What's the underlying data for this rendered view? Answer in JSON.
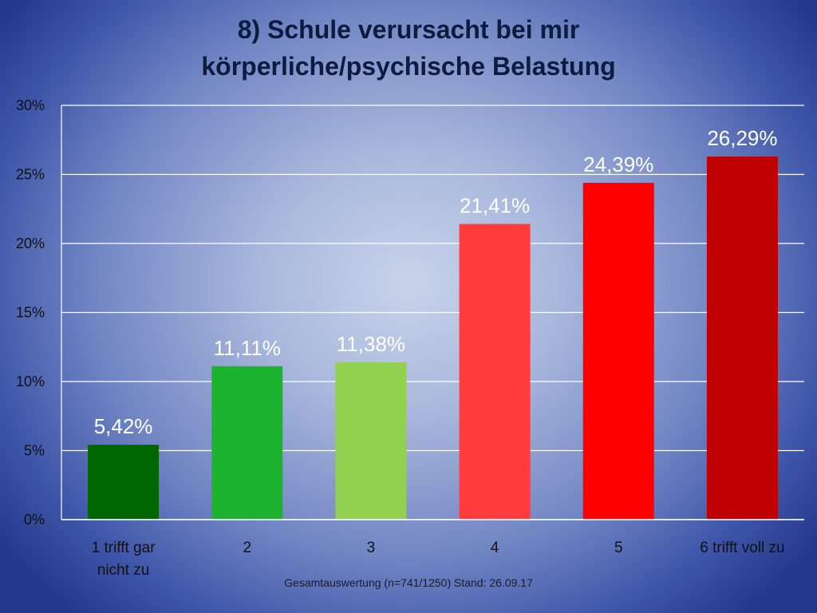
{
  "slide": {
    "title_line1": "8) Schule verursacht bei mir",
    "title_line2": "körperliche/psychische Belastung",
    "footnote": "Gesamtauswertung (n=741/1250) Stand: 26.09.17"
  },
  "chart_data": {
    "type": "bar",
    "title": "8) Schule verursacht bei mir körperliche/psychische Belastung",
    "categories": [
      [
        "1 trifft gar",
        "nicht zu"
      ],
      [
        "2"
      ],
      [
        "3"
      ],
      [
        "4"
      ],
      [
        "5"
      ],
      [
        "6 trifft voll zu"
      ]
    ],
    "values": [
      5.42,
      11.11,
      11.38,
      21.41,
      24.39,
      26.29
    ],
    "data_labels": [
      "5,42%",
      "11,11%",
      "11,38%",
      "21,41%",
      "24,39%",
      "26,29%"
    ],
    "bar_colors": [
      "#006600",
      "#1db32f",
      "#92d050",
      "#ff3b3b",
      "#ff0000",
      "#c00000"
    ],
    "ylim": [
      0,
      30
    ],
    "yticks": [
      0,
      5,
      10,
      15,
      20,
      25,
      30
    ],
    "ytick_labels": [
      "0%",
      "5%",
      "10%",
      "15%",
      "20%",
      "25%",
      "30%"
    ],
    "grid": true,
    "legend": "none",
    "xlabel": "",
    "ylabel": ""
  }
}
